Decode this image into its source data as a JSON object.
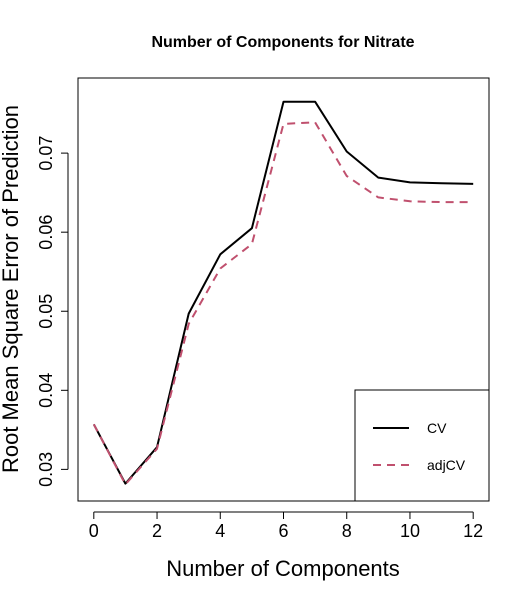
{
  "chart_data": {
    "type": "line",
    "title": "Number of Components for Nitrate",
    "xlabel": "Number of Components",
    "ylabel": "Root Mean Square Error of Prediction",
    "xlim": [
      -0.5,
      12.5
    ],
    "ylim": [
      0.026,
      0.0795
    ],
    "x_ticks": [
      0,
      2,
      4,
      6,
      8,
      10,
      12
    ],
    "y_ticks": [
      0.03,
      0.04,
      0.05,
      0.06,
      0.07
    ],
    "y_tick_labels": [
      "0.03",
      "0.04",
      "0.05",
      "0.06",
      "0.07"
    ],
    "grid": false,
    "legend_position": "bottom-right",
    "x": [
      0,
      1,
      2,
      3,
      4,
      5,
      6,
      7,
      8,
      9,
      10,
      11,
      12
    ],
    "series": [
      {
        "name": "CV",
        "color": "#000000",
        "style": "solid",
        "values": [
          0.0357,
          0.0282,
          0.0328,
          0.0497,
          0.0572,
          0.0605,
          0.0765,
          0.0765,
          0.0702,
          0.0669,
          0.0663,
          0.0662,
          0.0661
        ]
      },
      {
        "name": "adjCV",
        "color": "#c0506e",
        "style": "dashed",
        "values": [
          0.0357,
          0.0281,
          0.0326,
          0.0484,
          0.0554,
          0.0585,
          0.0737,
          0.0739,
          0.0671,
          0.0644,
          0.0639,
          0.0638,
          0.0638
        ]
      }
    ]
  }
}
